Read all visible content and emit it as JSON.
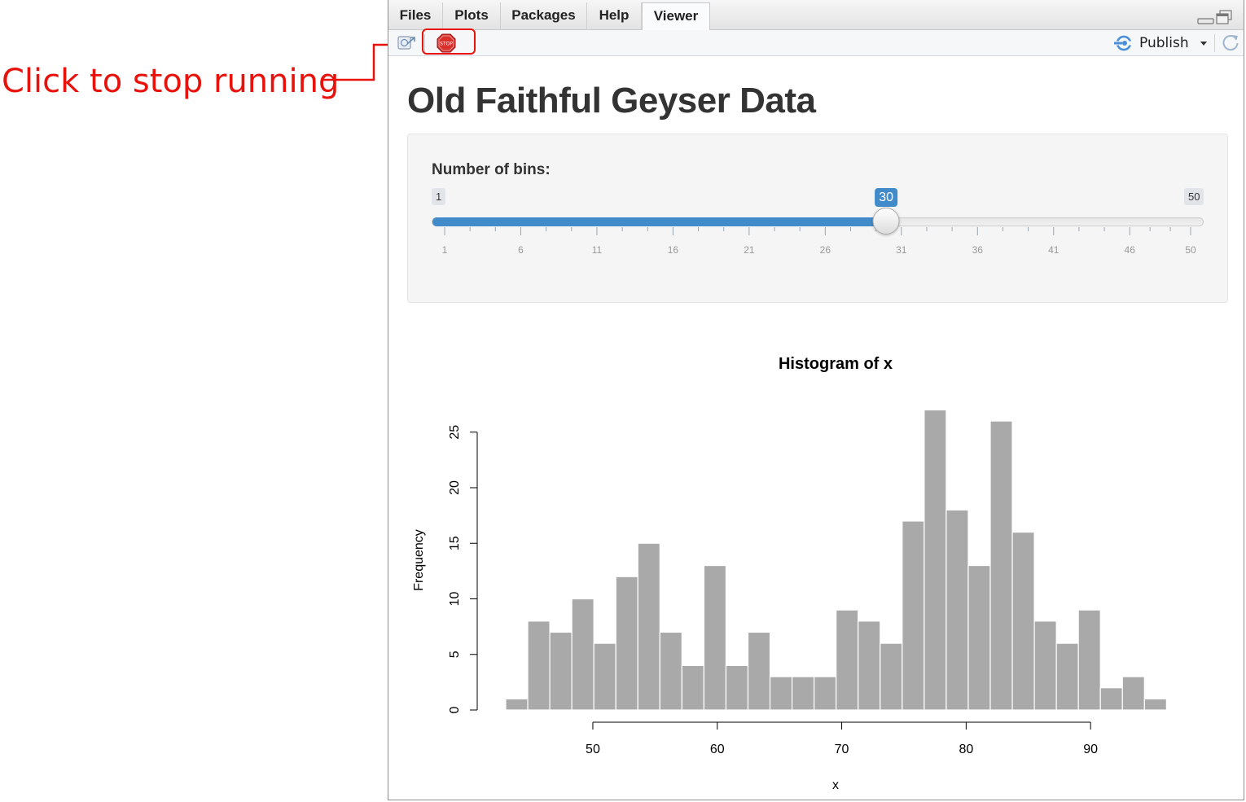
{
  "callout": {
    "text": "Click to stop running",
    "color": "#e8120c"
  },
  "tabs": [
    {
      "label": "Files",
      "active": false
    },
    {
      "label": "Plots",
      "active": false
    },
    {
      "label": "Packages",
      "active": false
    },
    {
      "label": "Help",
      "active": false
    },
    {
      "label": "Viewer",
      "active": true
    }
  ],
  "toolbar": {
    "stop_icon_text": "STOP",
    "publish_label": "Publish"
  },
  "app": {
    "title": "Old Faithful Geyser Data",
    "slider": {
      "label": "Number of bins:",
      "min": 1,
      "max": 50,
      "value": 30,
      "tick_labels": [
        "1",
        "6",
        "11",
        "16",
        "21",
        "26",
        "31",
        "36",
        "41",
        "46",
        "50"
      ],
      "accent_color": "#428bca"
    }
  },
  "chart_data": {
    "type": "bar",
    "title": "Histogram of x",
    "xlabel": "x",
    "ylabel": "Frequency",
    "bin_start": 43,
    "bin_width": 1.77,
    "values": [
      1,
      8,
      7,
      10,
      6,
      12,
      15,
      7,
      4,
      13,
      4,
      7,
      3,
      3,
      3,
      9,
      8,
      6,
      17,
      27,
      18,
      13,
      26,
      16,
      8,
      6,
      9,
      2,
      3,
      1
    ],
    "xticks": [
      50,
      60,
      70,
      80,
      90
    ],
    "yticks": [
      0,
      5,
      10,
      15,
      20,
      25
    ],
    "xlim": [
      43,
      96
    ],
    "ylim": [
      0,
      27
    ],
    "bar_color": "#a9a9a9",
    "grid": false,
    "legend": "none"
  }
}
